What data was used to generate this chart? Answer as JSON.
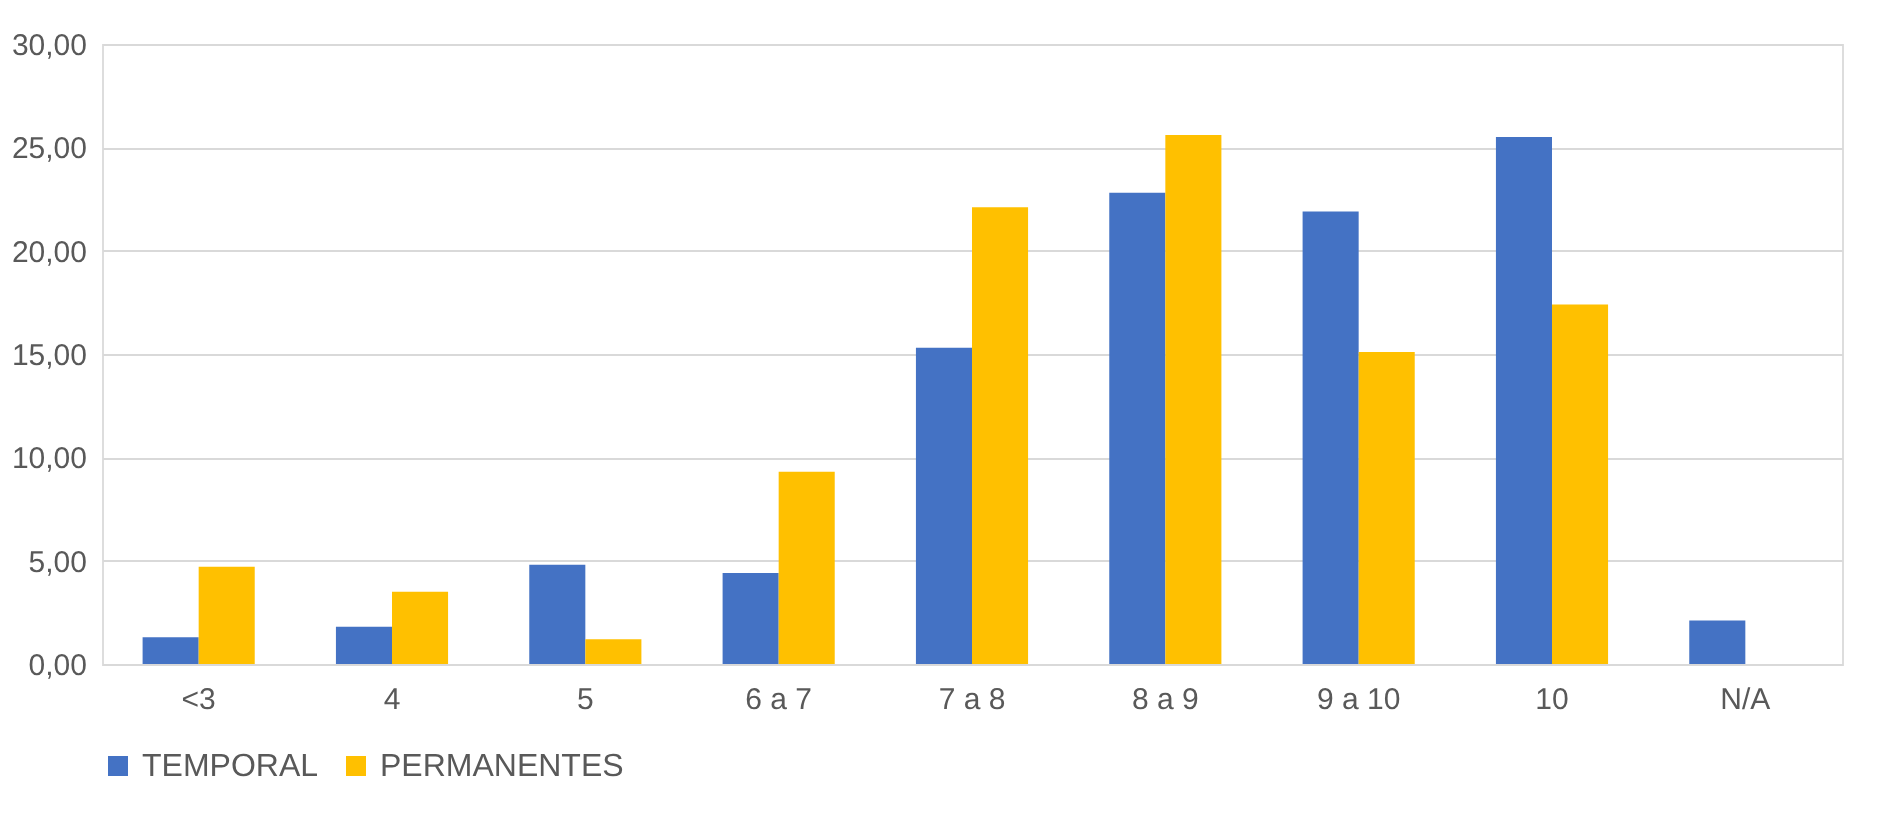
{
  "chart_data": {
    "type": "bar",
    "categories": [
      "<3",
      "4",
      "5",
      "6 a 7",
      "7 a 8",
      "8 a 9",
      "9 a 10",
      "10",
      "N/A"
    ],
    "series": [
      {
        "name": "TEMPORAL",
        "color": "#4472c4",
        "values": [
          1.3,
          1.8,
          4.8,
          4.4,
          15.3,
          22.8,
          21.9,
          25.5,
          2.1
        ]
      },
      {
        "name": "PERMANENTES",
        "color": "#ffc000",
        "values": [
          4.7,
          3.5,
          1.2,
          9.3,
          22.1,
          25.6,
          15.1,
          17.4,
          null
        ]
      }
    ],
    "ylim": [
      0,
      30
    ],
    "yticks": [
      {
        "value": 0,
        "label": "0,00"
      },
      {
        "value": 5,
        "label": "5,00"
      },
      {
        "value": 10,
        "label": "10,00"
      },
      {
        "value": 15,
        "label": "15,00"
      },
      {
        "value": 20,
        "label": "20,00"
      },
      {
        "value": 25,
        "label": "25,00"
      },
      {
        "value": 30,
        "label": "30,00"
      }
    ],
    "grid": "y",
    "legend": "bottom"
  }
}
